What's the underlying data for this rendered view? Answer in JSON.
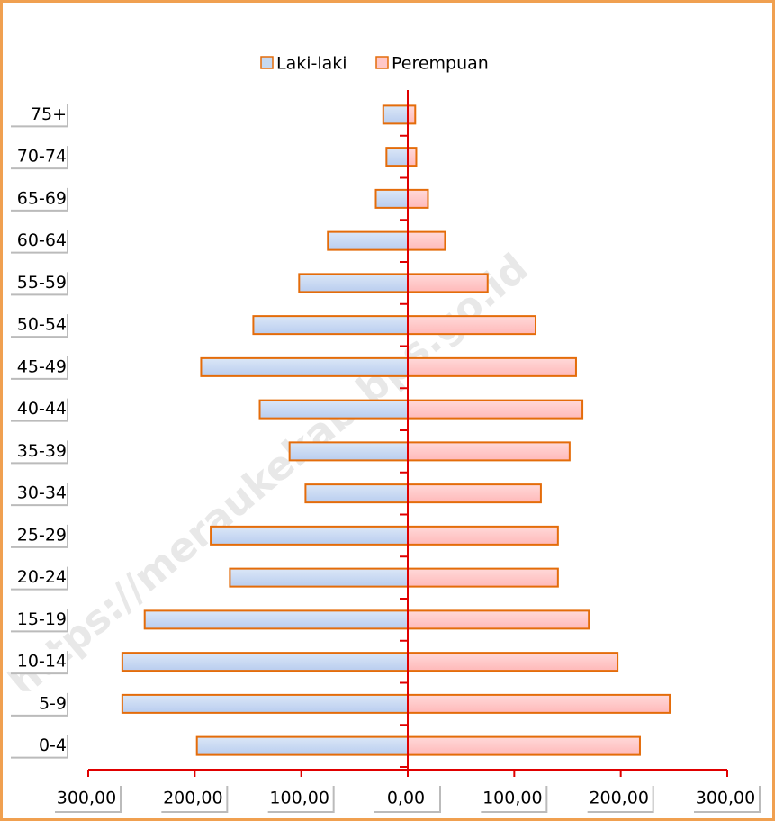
{
  "chart_data": {
    "type": "pyramid",
    "categories": [
      "0-4",
      "5-9",
      "10-14",
      "15-19",
      "20-24",
      "25-29",
      "30-34",
      "35-39",
      "40-44",
      "45-49",
      "50-54",
      "55-59",
      "60-64",
      "65-69",
      "70-74",
      "75+"
    ],
    "series": [
      {
        "name": "Laki-laki",
        "color": "#c6d9f1",
        "values": [
          -198,
          -268,
          -268,
          -247,
          -167,
          -185,
          -96,
          -111,
          -139,
          -194,
          -145,
          -102,
          -75,
          -30,
          -20,
          -23
        ]
      },
      {
        "name": "Perempuan",
        "color": "#ffc7c7",
        "values": [
          218,
          246,
          197,
          170,
          141,
          141,
          125,
          152,
          164,
          158,
          120,
          75,
          35,
          19,
          8,
          7
        ]
      }
    ],
    "xlim": [
      -300,
      300
    ],
    "xticks": [
      {
        "value": -300,
        "label": "300,00"
      },
      {
        "value": -200,
        "label": "200,00"
      },
      {
        "value": -100,
        "label": "100,00"
      },
      {
        "value": 0,
        "label": "0,00"
      },
      {
        "value": 100,
        "label": "100,00"
      },
      {
        "value": 200,
        "label": "200,00"
      },
      {
        "value": 300,
        "label": "300,00"
      }
    ],
    "legend": "top",
    "watermark": "https://meraukekab.bps.go.id"
  }
}
